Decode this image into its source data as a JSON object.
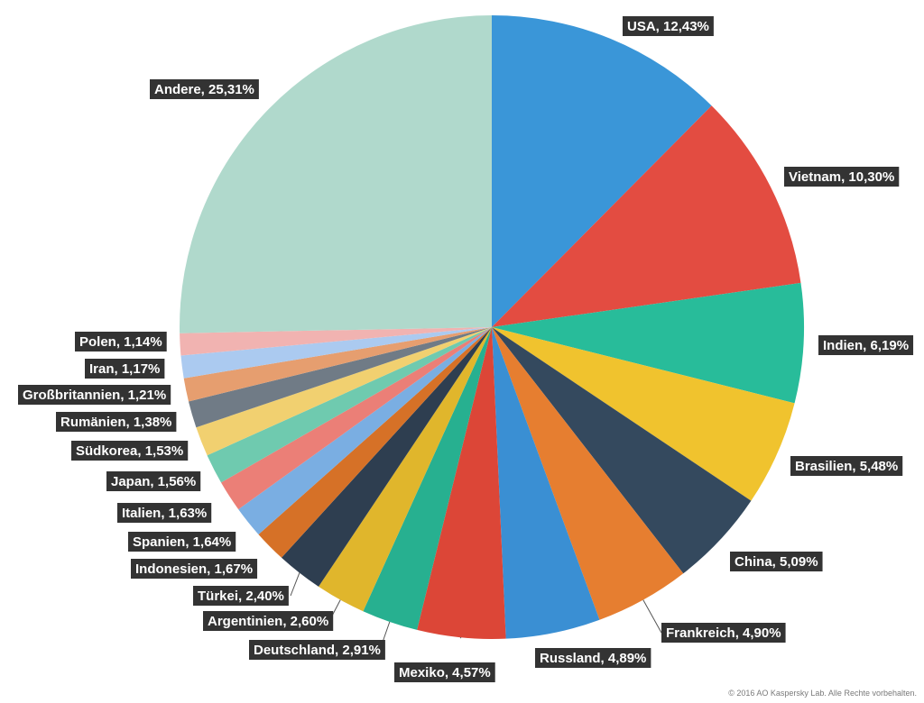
{
  "chart_data": {
    "type": "pie",
    "title": "",
    "start_angle_deg": 0,
    "direction": "clockwise",
    "slices": [
      {
        "label": "USA",
        "value": 12.43,
        "text": "USA, 12,43%",
        "color": "#3a96d8"
      },
      {
        "label": "Vietnam",
        "value": 10.3,
        "text": "Vietnam, 10,30%",
        "color": "#e34c41"
      },
      {
        "label": "Indien",
        "value": 6.19,
        "text": "Indien, 6,19%",
        "color": "#28bc9a"
      },
      {
        "label": "Brasilien",
        "value": 5.48,
        "text": "Brasilien, 5,48%",
        "color": "#f0c32e"
      },
      {
        "label": "China",
        "value": 5.09,
        "text": "China, 5,09%",
        "color": "#34495e"
      },
      {
        "label": "Frankreich",
        "value": 4.9,
        "text": "Frankreich, 4,90%",
        "color": "#e67e30"
      },
      {
        "label": "Russland",
        "value": 4.89,
        "text": "Russland, 4,89%",
        "color": "#3a8fd3"
      },
      {
        "label": "Mexiko",
        "value": 4.57,
        "text": "Mexiko, 4,57%",
        "color": "#dc4637"
      },
      {
        "label": "Deutschland",
        "value": 2.91,
        "text": "Deutschland, 2,91%",
        "color": "#27b090"
      },
      {
        "label": "Argentinien",
        "value": 2.6,
        "text": "Argentinien, 2,60%",
        "color": "#e0b62c"
      },
      {
        "label": "Türkei",
        "value": 2.4,
        "text": "Türkei, 2,40%",
        "color": "#2e3e50"
      },
      {
        "label": "Indonesien",
        "value": 1.67,
        "text": "Indonesien, 1,67%",
        "color": "#d67127"
      },
      {
        "label": "Spanien",
        "value": 1.64,
        "text": "Spanien, 1,64%",
        "color": "#7aaee2"
      },
      {
        "label": "Italien",
        "value": 1.63,
        "text": "Italien, 1,63%",
        "color": "#eb7f77"
      },
      {
        "label": "Japan",
        "value": 1.56,
        "text": "Japan, 1,56%",
        "color": "#6fcaaf"
      },
      {
        "label": "Südkorea",
        "value": 1.53,
        "text": "Südkorea, 1,53%",
        "color": "#f1d070"
      },
      {
        "label": "Rumänien",
        "value": 1.38,
        "text": "Rumänien, 1,38%",
        "color": "#707b86"
      },
      {
        "label": "Großbritannien",
        "value": 1.21,
        "text": "Großbritannien, 1,21%",
        "color": "#e69e6f"
      },
      {
        "label": "Iran",
        "value": 1.17,
        "text": "Iran, 1,17%",
        "color": "#abcaf0"
      },
      {
        "label": "Polen",
        "value": 1.14,
        "text": "Polen, 1,14%",
        "color": "#f1b3b1"
      },
      {
        "label": "Andere",
        "value": 25.31,
        "text": "Andere, 25,31%",
        "color": "#b0d9cc"
      }
    ]
  },
  "footer": {
    "copyright": "© 2016 AO Kaspersky Lab. Alle Rechte vorbehalten."
  }
}
